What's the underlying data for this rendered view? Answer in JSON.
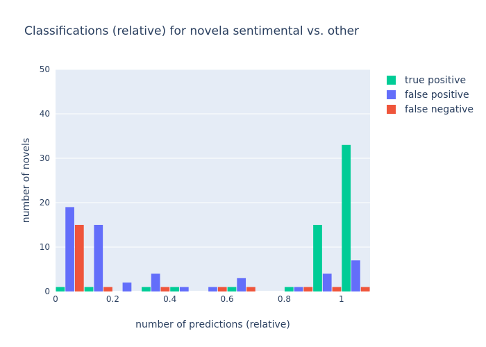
{
  "chart_data": {
    "type": "bar",
    "title": "Classifications (relative) for novela sentimental vs. other",
    "xlabel": "number of predictions (relative)",
    "ylabel": "number of novels",
    "xlim": [
      0,
      1.1
    ],
    "ylim": [
      0,
      50
    ],
    "x_ticks": [
      0,
      0.2,
      0.4,
      0.6,
      0.8,
      1
    ],
    "x_tick_labels": [
      "0",
      "0.2",
      "0.4",
      "0.6",
      "0.8",
      "1"
    ],
    "y_ticks": [
      0,
      10,
      20,
      30,
      40,
      50
    ],
    "y_tick_labels": [
      "0",
      "10",
      "20",
      "30",
      "40",
      "50"
    ],
    "bin_width": 0.1,
    "bins": [
      0,
      0.1,
      0.2,
      0.3,
      0.4,
      0.5,
      0.6,
      0.7,
      0.8,
      0.9,
      1.0
    ],
    "series": [
      {
        "name": "true positive",
        "color": "#00cc96",
        "values": [
          1,
          1,
          0,
          1,
          1,
          0,
          1,
          0,
          1,
          15,
          33
        ]
      },
      {
        "name": "false positive",
        "color": "#636efa",
        "values": [
          19,
          15,
          2,
          4,
          1,
          1,
          3,
          0,
          1,
          4,
          7
        ]
      },
      {
        "name": "false negative",
        "color": "#ef553b",
        "values": [
          15,
          1,
          0,
          1,
          0,
          1,
          1,
          0,
          1,
          1,
          1
        ]
      }
    ],
    "legend_position": "top-right",
    "grid": true,
    "plot_background": "#e5ecf6"
  }
}
